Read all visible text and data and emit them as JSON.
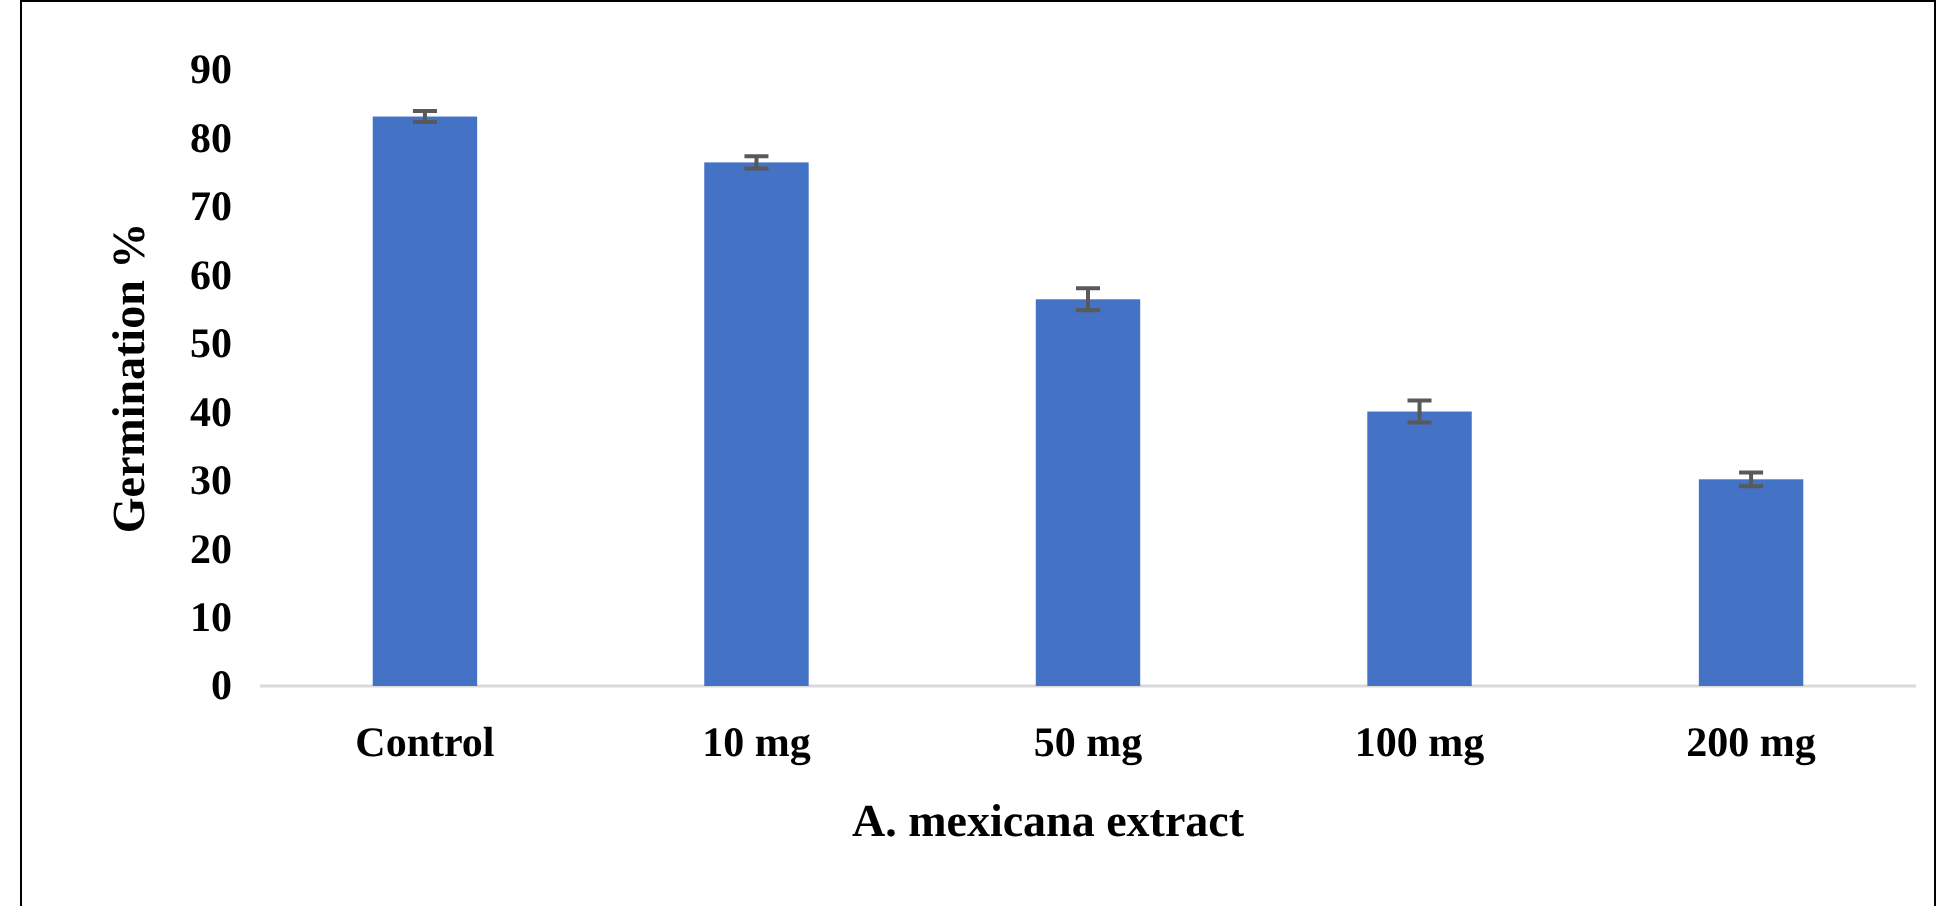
{
  "chart_data": {
    "type": "bar",
    "xlabel": "A. mexicana extract",
    "ylabel": "Germination %",
    "categories": [
      "Control",
      "10 mg",
      "50 mg",
      "100 mg",
      "200 mg"
    ],
    "values": [
      83.2,
      76.5,
      56.5,
      40.1,
      30.2
    ],
    "errors": [
      0.8,
      0.9,
      1.6,
      1.6,
      1.0
    ],
    "color": "#4472c4",
    "ylim": [
      0,
      90
    ],
    "yticks": [
      0,
      10,
      20,
      30,
      40,
      50,
      60,
      70,
      80,
      90
    ],
    "grid": false
  }
}
